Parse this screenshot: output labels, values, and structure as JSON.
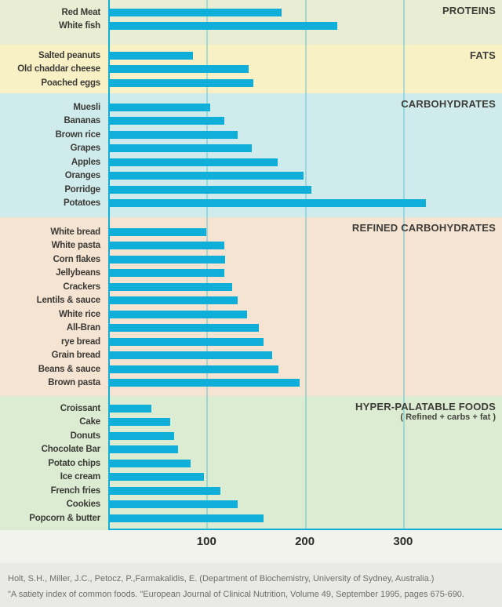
{
  "chart_data": {
    "type": "bar",
    "orientation": "horizontal",
    "title": "",
    "xlabel": "",
    "ylabel": "",
    "x_ticks": [
      100,
      200,
      300
    ],
    "xlim": [
      0,
      400
    ],
    "grid": true,
    "legend": false,
    "bar_color": "#0fafda",
    "axis_color": "#0fafda",
    "gridline_color": "rgba(80,190,210,0.45)",
    "sections": [
      {
        "name": "PROTEINS",
        "subtitle": "",
        "bg": "#e8edd3",
        "items": [
          {
            "label": "Red Meat",
            "value": 176
          },
          {
            "label": "White fish",
            "value": 233
          }
        ]
      },
      {
        "name": "FATS",
        "subtitle": "",
        "bg": "#f9f1c6",
        "items": [
          {
            "label": "Salted peanuts",
            "value": 86
          },
          {
            "label": "Old chaddar cheese",
            "value": 143
          },
          {
            "label": "Poached eggs",
            "value": 148
          }
        ]
      },
      {
        "name": "CARBOHYDRATES",
        "subtitle": "",
        "bg": "#cfebeb",
        "items": [
          {
            "label": "Muesli",
            "value": 104
          },
          {
            "label": "Bananas",
            "value": 118
          },
          {
            "label": "Brown rice",
            "value": 132
          },
          {
            "label": "Grapes",
            "value": 146
          },
          {
            "label": "Apples",
            "value": 172
          },
          {
            "label": "Oranges",
            "value": 199
          },
          {
            "label": "Porridge",
            "value": 207
          },
          {
            "label": "Potatoes",
            "value": 323
          }
        ]
      },
      {
        "name": "REFINED CARBOHYDRATES",
        "subtitle": "",
        "bg": "#f6e4d2",
        "items": [
          {
            "label": "White bread",
            "value": 100
          },
          {
            "label": "White pasta",
            "value": 118
          },
          {
            "label": "Corn flakes",
            "value": 119
          },
          {
            "label": "Jellybeans",
            "value": 118
          },
          {
            "label": "Crackers",
            "value": 126
          },
          {
            "label": "Lentils & sauce",
            "value": 132
          },
          {
            "label": "White rice",
            "value": 141
          },
          {
            "label": "All-Bran",
            "value": 153
          },
          {
            "label": "rye bread",
            "value": 158
          },
          {
            "label": "Grain bread",
            "value": 167
          },
          {
            "label": "Beans & sauce",
            "value": 173
          },
          {
            "label": "Brown pasta",
            "value": 195
          }
        ]
      },
      {
        "name": "HYPER-PALATABLE FOODS",
        "subtitle": "( Refined + carbs + fat )",
        "bg": "#dcecd2",
        "items": [
          {
            "label": "Croissant",
            "value": 44
          },
          {
            "label": "Cake",
            "value": 63
          },
          {
            "label": "Donuts",
            "value": 67
          },
          {
            "label": "Chocolate Bar",
            "value": 71
          },
          {
            "label": "Potato chips",
            "value": 84
          },
          {
            "label": "Ice cream",
            "value": 97
          },
          {
            "label": "French fries",
            "value": 114
          },
          {
            "label": "Cookies",
            "value": 132
          },
          {
            "label": "Popcorn & butter",
            "value": 158
          }
        ]
      }
    ]
  },
  "footer": {
    "line1": "Holt, S.H., Miller, J.C., Petocz, P.,Farmakalidis, E. (Department of Biochemistry, University of Sydney, Australia.)",
    "line2": "\"A satiety index of common foods. \"European Journal of Clinical Nutrition, Volume 49, September 1995, pages 675-690."
  }
}
